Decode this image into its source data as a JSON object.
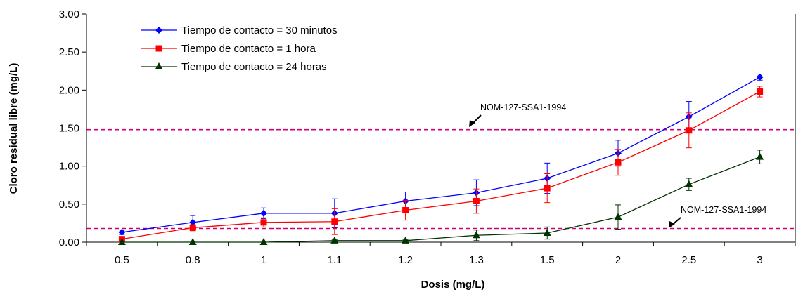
{
  "chart_data": {
    "type": "line",
    "title": "",
    "xlabel": "Dosis (mg/L)",
    "ylabel": "Cloro residual libre (mg/L)",
    "categories": [
      "0.5",
      "0.8",
      "1",
      "1.1",
      "1.2",
      "1.3",
      "1.5",
      "2",
      "2.5",
      "3"
    ],
    "ylim": [
      0,
      3
    ],
    "yticks": [
      "0.00",
      "0.50",
      "1.00",
      "1.50",
      "2.00",
      "2.50",
      "3.00"
    ],
    "grid": false,
    "legend_position": "top-left",
    "series": [
      {
        "name": "Tiempo de contacto = 30 minutos",
        "color": "#0000ff",
        "marker": "diamond",
        "values": [
          0.13,
          0.26,
          0.38,
          0.38,
          0.54,
          0.65,
          0.84,
          1.17,
          1.65,
          2.17
        ],
        "errors": [
          0.03,
          0.09,
          0.07,
          0.19,
          0.12,
          0.17,
          0.2,
          0.17,
          0.2,
          0.04
        ]
      },
      {
        "name": "Tiempo de contacto = 1 hora",
        "color": "#ff0000",
        "marker": "square",
        "values": [
          0.04,
          0.19,
          0.26,
          0.27,
          0.42,
          0.54,
          0.71,
          1.05,
          1.47,
          1.98
        ],
        "errors": [
          0.02,
          0.04,
          0.06,
          0.17,
          0.13,
          0.16,
          0.19,
          0.17,
          0.23,
          0.07
        ]
      },
      {
        "name": "Tiempo de contacto = 24 horas",
        "color": "#003300",
        "marker": "triangle",
        "values": [
          0.0,
          0.0,
          0.0,
          0.02,
          0.02,
          0.09,
          0.12,
          0.33,
          0.76,
          1.12
        ],
        "errors": [
          0.0,
          0.0,
          0.0,
          0.01,
          0.01,
          0.07,
          0.08,
          0.16,
          0.08,
          0.09
        ]
      }
    ],
    "reference_lines": [
      {
        "y": 1.48,
        "color": "#cc0077",
        "label": "NOM-127-SSA1-1994"
      },
      {
        "y": 0.18,
        "color": "#cc0077",
        "label": "NOM-127-SSA1-1994"
      }
    ]
  }
}
